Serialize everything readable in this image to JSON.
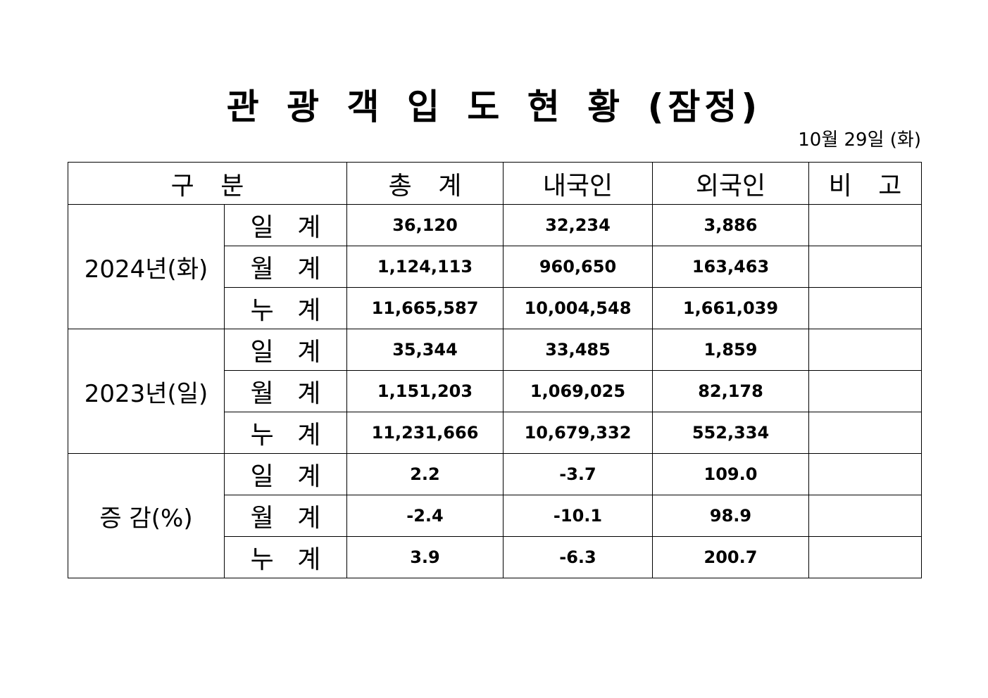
{
  "header": {
    "title": "관 광 객 입 도 현 황 (잠정)",
    "date": "10월 29일 (화)"
  },
  "table": {
    "columns": [
      "구 분",
      "총 계",
      "내국인",
      "외국인",
      "비 고"
    ],
    "groups": [
      {
        "label": "2024년(화)",
        "rows": [
          {
            "label": "일 계",
            "values": [
              "36,120",
              "32,234",
              "3,886"
            ]
          },
          {
            "label": "월 계",
            "values": [
              "1,124,113",
              "960,650",
              "163,463"
            ]
          },
          {
            "label": "누 계",
            "values": [
              "11,665,587",
              "10,004,548",
              "1,661,039"
            ]
          }
        ]
      },
      {
        "label": "2023년(일)",
        "rows": [
          {
            "label": "일 계",
            "values": [
              "35,344",
              "33,485",
              "1,859"
            ]
          },
          {
            "label": "월 계",
            "values": [
              "1,151,203",
              "1,069,025",
              "82,178"
            ]
          },
          {
            "label": "누 계",
            "values": [
              "11,231,666",
              "10,679,332",
              "552,334"
            ]
          }
        ]
      },
      {
        "label": "증 감(%)",
        "rows": [
          {
            "label": "일 계",
            "values": [
              "2.2",
              "-3.7",
              "109.0"
            ]
          },
          {
            "label": "월 계",
            "values": [
              "-2.4",
              "-10.1",
              "98.9"
            ]
          },
          {
            "label": "누 계",
            "values": [
              "3.9",
              "-6.3",
              "200.7"
            ]
          }
        ]
      }
    ]
  }
}
